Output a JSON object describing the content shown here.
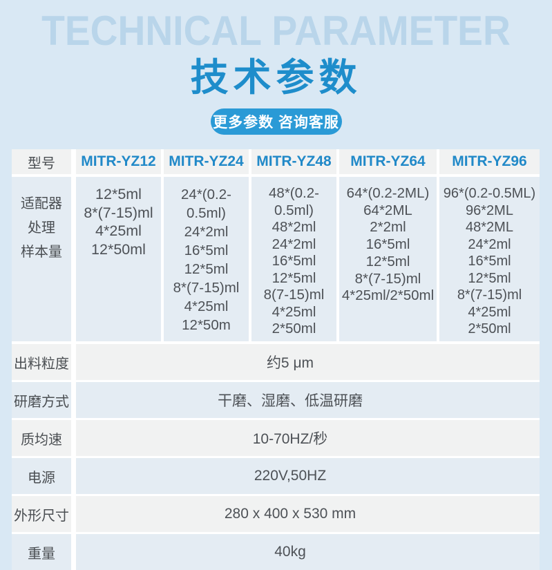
{
  "hero": {
    "title_en": "TECHNICAL PARAMETER",
    "title_zh": "技术参数",
    "cta_label": "更多参数 咨询客服"
  },
  "table": {
    "model_label": "型号",
    "models": [
      "MITR-YZ12",
      "MITR-YZ24",
      "MITR-YZ48",
      "MITR-YZ64",
      "MITR-YZ96"
    ],
    "adapter_row": {
      "label_lines": [
        "适配器",
        "处理",
        "样本量"
      ],
      "columns": [
        [
          "12*5ml",
          "8*(7-15)ml",
          "4*25ml",
          "12*50ml"
        ],
        [
          "24*(0.2-0.5ml)",
          "24*2ml",
          "16*5ml",
          "12*5ml",
          "8*(7-15)ml",
          "4*25ml",
          "12*50m"
        ],
        [
          "48*(0.2-0.5ml)",
          "48*2ml",
          "24*2ml",
          "16*5ml",
          "12*5ml",
          "8(7-15)ml",
          "4*25ml",
          "2*50ml"
        ],
        [
          "64*(0.2-2ML)",
          "64*2ML",
          "2*2ml",
          "16*5ml",
          "12*5ml",
          "8*(7-15)ml",
          "4*25ml/2*50ml"
        ],
        [
          "96*(0.2-0.5ML)",
          "96*2ML",
          "48*2ML",
          "24*2ml",
          "16*5ml",
          "12*5ml",
          "8*(7-15)ml",
          "4*25ml",
          "2*50ml"
        ]
      ]
    },
    "spec_rows": [
      {
        "label": "出料粒度",
        "value": "约5 μm"
      },
      {
        "label": "研磨方式",
        "value": "干磨、湿磨、低温研磨"
      },
      {
        "label": "质均速",
        "value": "10-70HZ/秒"
      },
      {
        "label": "电源",
        "value": "220V,50HZ"
      },
      {
        "label": "外形尺寸",
        "value": "280 x 400 x 530 mm"
      },
      {
        "label": "重量",
        "value": "40kg"
      }
    ]
  },
  "colors": {
    "page_bg": "#d9e8f4",
    "title_watermark": "#b9d5ea",
    "accent_blue": "#1e8dcb",
    "button_blue": "#2a9ad6",
    "cell_blue": "#e4ecf3",
    "cell_gray": "#f1f2f2",
    "gap_white": "#ffffff",
    "text_dark": "#4d5156"
  }
}
